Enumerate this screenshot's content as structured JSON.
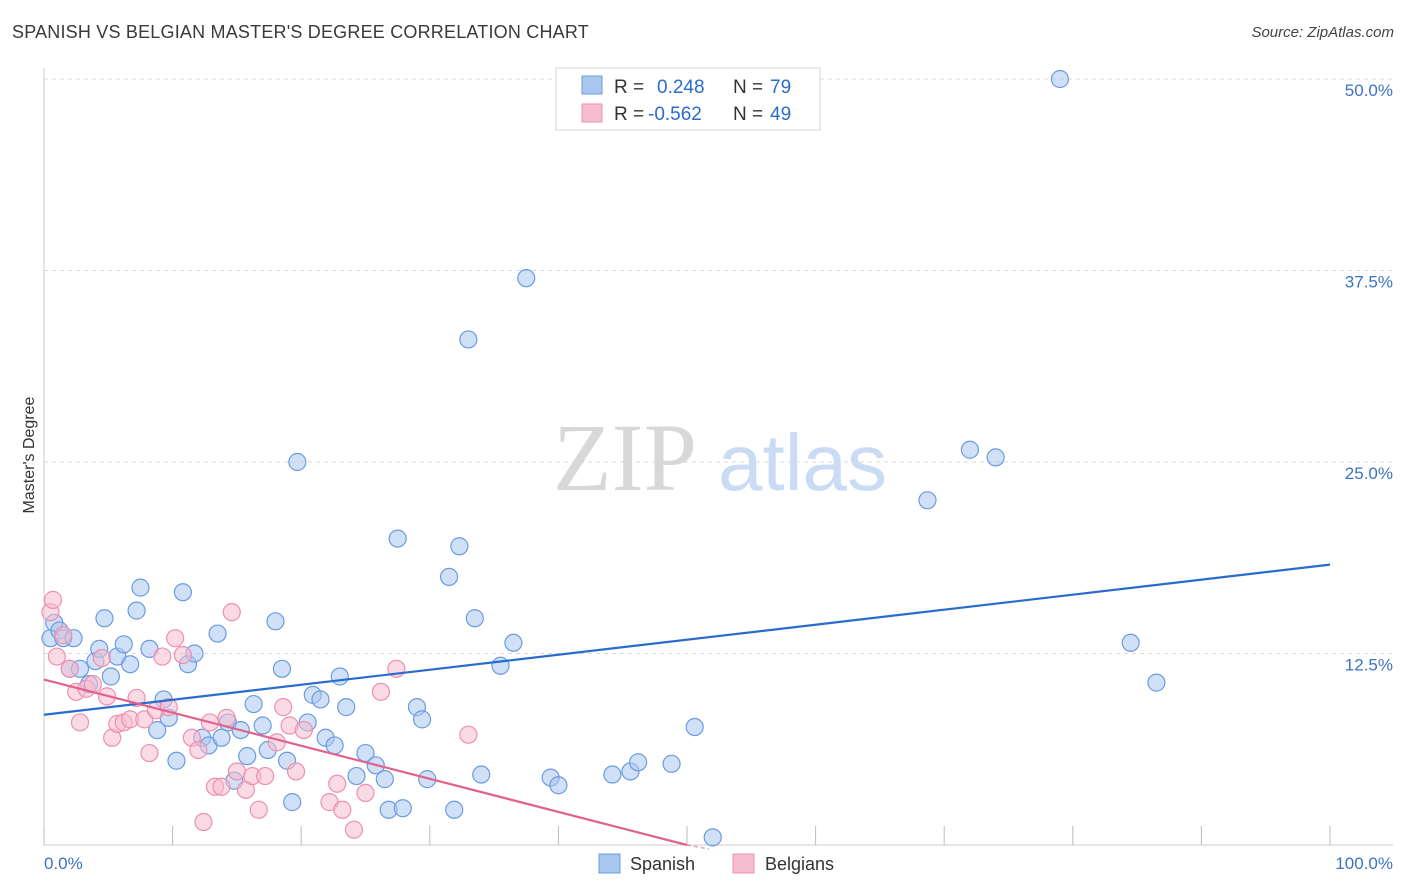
{
  "title": "SPANISH VS BELGIAN MASTER'S DEGREE CORRELATION CHART",
  "source": "Source: ZipAtlas.com",
  "watermark": {
    "zip": "ZIP",
    "atlas": "atlas"
  },
  "colors": {
    "spanish": "#6b9be0",
    "spanish_fill": "#a9c6ef",
    "spanish_line": "#2a6ccc",
    "belgian": "#ee8fb0",
    "belgian_fill": "#f6bdd0",
    "belgian_line": "#e0628e",
    "tick_text": "#3b73c4"
  },
  "chart_data": {
    "type": "scatter",
    "title": "SPANISH VS BELGIAN MASTER'S DEGREE CORRELATION CHART",
    "ylabel": "Master's Degree",
    "xlabel": "",
    "xlim": [
      0,
      100
    ],
    "ylim": [
      0,
      52.5
    ],
    "yticks": [
      12.5,
      25.0,
      37.5,
      50.0
    ],
    "ytick_labels": [
      "12.5%",
      "25.0%",
      "37.5%",
      "50.0%"
    ],
    "xtick_labels": {
      "min": "0.0%",
      "max": "100.0%"
    },
    "grid": true,
    "legend": {
      "position": "top-center",
      "rows": [
        {
          "r_label": "R =",
          "r_value": "0.248",
          "n_label": "N =",
          "n_value": "79"
        },
        {
          "r_label": "R =",
          "r_value": "-0.562",
          "n_label": "N =",
          "n_value": "49"
        }
      ]
    },
    "series": [
      {
        "name": "Spanish",
        "trend": {
          "x": [
            0,
            100
          ],
          "y": [
            8.5,
            18.3
          ]
        },
        "points": [
          [
            0.5,
            13.5
          ],
          [
            0.8,
            14.5
          ],
          [
            1.2,
            14.0
          ],
          [
            1.5,
            13.5
          ],
          [
            2.0,
            11.5
          ],
          [
            2.3,
            13.5
          ],
          [
            2.8,
            11.5
          ],
          [
            3.5,
            10.5
          ],
          [
            4.0,
            12.0
          ],
          [
            4.3,
            12.8
          ],
          [
            4.7,
            14.8
          ],
          [
            5.2,
            11.0
          ],
          [
            5.7,
            12.3
          ],
          [
            6.2,
            13.1
          ],
          [
            6.7,
            11.8
          ],
          [
            7.2,
            15.3
          ],
          [
            7.5,
            16.8
          ],
          [
            8.2,
            12.8
          ],
          [
            8.8,
            7.5
          ],
          [
            9.3,
            9.5
          ],
          [
            9.7,
            8.3
          ],
          [
            10.3,
            5.5
          ],
          [
            10.8,
            16.5
          ],
          [
            11.2,
            11.8
          ],
          [
            11.7,
            12.5
          ],
          [
            12.3,
            7.0
          ],
          [
            12.8,
            6.5
          ],
          [
            13.5,
            13.8
          ],
          [
            13.8,
            7.0
          ],
          [
            14.3,
            8.0
          ],
          [
            14.8,
            4.2
          ],
          [
            15.3,
            7.5
          ],
          [
            15.8,
            5.8
          ],
          [
            16.3,
            9.2
          ],
          [
            17.0,
            7.8
          ],
          [
            17.4,
            6.2
          ],
          [
            18.0,
            14.6
          ],
          [
            18.5,
            11.5
          ],
          [
            18.9,
            5.5
          ],
          [
            19.3,
            2.8
          ],
          [
            19.7,
            25.0
          ],
          [
            20.5,
            8.0
          ],
          [
            20.9,
            9.8
          ],
          [
            21.5,
            9.5
          ],
          [
            21.9,
            7.0
          ],
          [
            22.6,
            6.5
          ],
          [
            23.0,
            11.0
          ],
          [
            23.5,
            9.0
          ],
          [
            24.3,
            4.5
          ],
          [
            25.0,
            6.0
          ],
          [
            25.8,
            5.2
          ],
          [
            26.5,
            4.3
          ],
          [
            26.8,
            2.3
          ],
          [
            27.5,
            20.0
          ],
          [
            27.9,
            2.4
          ],
          [
            29.0,
            9.0
          ],
          [
            29.4,
            8.2
          ],
          [
            29.8,
            4.3
          ],
          [
            31.5,
            17.5
          ],
          [
            31.9,
            2.3
          ],
          [
            32.3,
            19.5
          ],
          [
            33.0,
            33.0
          ],
          [
            33.5,
            14.8
          ],
          [
            34.0,
            4.6
          ],
          [
            35.5,
            11.7
          ],
          [
            36.5,
            13.2
          ],
          [
            37.5,
            37.0
          ],
          [
            39.4,
            4.4
          ],
          [
            40.0,
            3.9
          ],
          [
            44.2,
            4.6
          ],
          [
            45.6,
            4.8
          ],
          [
            46.2,
            5.4
          ],
          [
            48.8,
            5.3
          ],
          [
            52.0,
            0.5
          ],
          [
            68.7,
            22.5
          ],
          [
            72.0,
            25.8
          ],
          [
            74.0,
            25.3
          ],
          [
            79.0,
            50.0
          ],
          [
            84.5,
            13.2
          ],
          [
            86.5,
            10.6
          ],
          [
            50.6,
            7.7
          ]
        ]
      },
      {
        "name": "Belgians",
        "trend": {
          "x": [
            0,
            50
          ],
          "y": [
            10.8,
            0.0
          ]
        },
        "points": [
          [
            0.5,
            15.2
          ],
          [
            0.7,
            16.0
          ],
          [
            1.0,
            12.3
          ],
          [
            1.5,
            13.7
          ],
          [
            2.0,
            11.5
          ],
          [
            2.5,
            10.0
          ],
          [
            2.8,
            8.0
          ],
          [
            3.3,
            10.2
          ],
          [
            3.8,
            10.5
          ],
          [
            4.5,
            12.2
          ],
          [
            4.9,
            9.7
          ],
          [
            5.3,
            7.0
          ],
          [
            5.7,
            7.9
          ],
          [
            6.2,
            8.0
          ],
          [
            6.7,
            8.2
          ],
          [
            7.2,
            9.6
          ],
          [
            7.8,
            8.2
          ],
          [
            8.2,
            6.0
          ],
          [
            8.7,
            8.8
          ],
          [
            9.2,
            12.3
          ],
          [
            9.7,
            9.0
          ],
          [
            10.2,
            13.5
          ],
          [
            10.8,
            12.4
          ],
          [
            11.5,
            7.0
          ],
          [
            12.0,
            6.2
          ],
          [
            12.4,
            1.5
          ],
          [
            12.9,
            8.0
          ],
          [
            13.3,
            3.8
          ],
          [
            13.8,
            3.8
          ],
          [
            14.2,
            8.3
          ],
          [
            14.6,
            15.2
          ],
          [
            15.0,
            4.8
          ],
          [
            15.7,
            3.6
          ],
          [
            16.2,
            4.5
          ],
          [
            16.7,
            2.3
          ],
          [
            17.2,
            4.5
          ],
          [
            18.1,
            6.7
          ],
          [
            18.6,
            9.0
          ],
          [
            19.1,
            7.8
          ],
          [
            19.6,
            4.8
          ],
          [
            20.2,
            7.5
          ],
          [
            22.2,
            2.8
          ],
          [
            22.8,
            4.0
          ],
          [
            23.2,
            2.3
          ],
          [
            24.1,
            1.0
          ],
          [
            25.0,
            3.4
          ],
          [
            26.2,
            10.0
          ],
          [
            27.4,
            11.5
          ],
          [
            33.0,
            7.2
          ]
        ]
      }
    ]
  },
  "bottom_legend": {
    "items": [
      "Spanish",
      "Belgians"
    ]
  }
}
